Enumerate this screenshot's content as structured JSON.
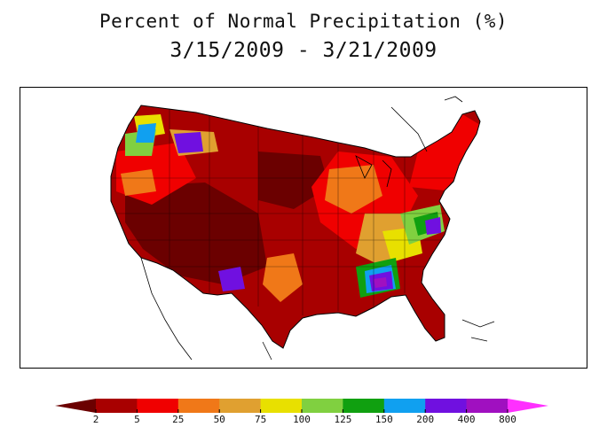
{
  "title": {
    "line1": "Percent of Normal Precipitation (%)",
    "line2": "3/15/2009 - 3/21/2009"
  },
  "legend": {
    "ticks": [
      "2",
      "5",
      "25",
      "50",
      "75",
      "100",
      "125",
      "150",
      "200",
      "400",
      "800"
    ],
    "colors": {
      "lt2": "#6b0000",
      "c2_5": "#a80000",
      "c5_25": "#f00000",
      "c25_50": "#f07818",
      "c50_75": "#e0a030",
      "c75_100": "#e8e000",
      "c100_125": "#80d040",
      "c125_150": "#10a010",
      "c150_200": "#10a0f0",
      "c200_400": "#7010e0",
      "c400_800": "#a010c0",
      "gt800": "#ff30ff"
    }
  },
  "map": {
    "region": "Contiguous United States",
    "dominant_category": "2-5 percent of normal",
    "background": "#ffffff",
    "outline": "#000000"
  }
}
